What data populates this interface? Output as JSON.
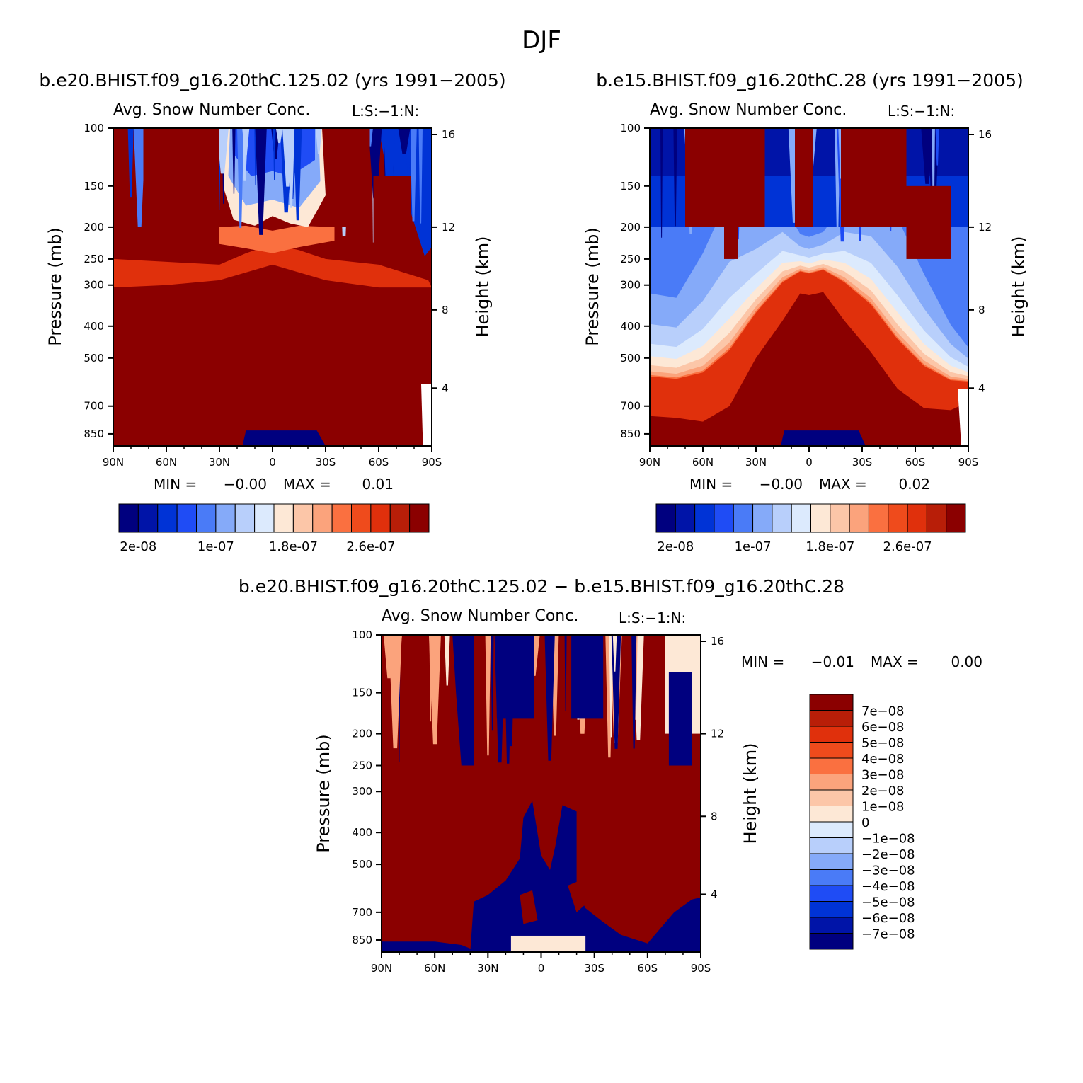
{
  "page": {
    "title": "DJF"
  },
  "chart_data": [
    {
      "type": "heatmap",
      "panel": "top-left",
      "case_title": "b.e20.BHIST.f09_g16.20thC.125.02 (yrs 1991−2005)",
      "title": "Avg. Snow Number Conc.",
      "subtitle": "L:S:−1:N:",
      "xlabel": "",
      "ylabel": "Pressure (mb)",
      "ylabel_right": "Height (km)",
      "x_ticks": [
        "90N",
        "60N",
        "30N",
        "0",
        "30S",
        "60S",
        "90S"
      ],
      "y_ticks": [
        "100",
        "150",
        "200",
        "250",
        "300",
        "400",
        "500",
        "700",
        "850"
      ],
      "y_ticks_right": [
        "16",
        "12",
        "8",
        "4"
      ],
      "ylim": [
        100,
        925
      ],
      "y_scale": "log",
      "xlim": [
        90,
        -90
      ],
      "stats": {
        "min_label": "MIN =",
        "min_value": "−0.00",
        "max_label": "MAX =",
        "max_value": "0.01"
      },
      "colorbar": {
        "orientation": "horizontal",
        "labels": [
          "2e-08",
          "1e-07",
          "1.8e-07",
          "2.6e-07"
        ]
      },
      "description_of_field": "mostly saturated dark red; blue spikes in upper levels; blue low-level patch near equator"
    },
    {
      "type": "heatmap",
      "panel": "top-right",
      "case_title": "b.e15.BHIST.f09_g16.20thC.28 (yrs 1991−2005)",
      "title": "Avg. Snow Number Conc.",
      "subtitle": "L:S:−1:N:",
      "xlabel": "",
      "ylabel": "Pressure (mb)",
      "ylabel_right": "Height (km)",
      "x_ticks": [
        "90N",
        "60N",
        "30N",
        "0",
        "30S",
        "60S",
        "90S"
      ],
      "y_ticks": [
        "100",
        "150",
        "200",
        "250",
        "300",
        "400",
        "500",
        "700",
        "850"
      ],
      "y_ticks_right": [
        "16",
        "12",
        "8",
        "4"
      ],
      "ylim": [
        100,
        925
      ],
      "y_scale": "log",
      "xlim": [
        90,
        -90
      ],
      "stats": {
        "min_label": "MIN =",
        "min_value": "−0.00",
        "max_label": "MAX =",
        "max_value": "0.02"
      },
      "colorbar": {
        "orientation": "horizontal",
        "labels": [
          "2e-08",
          "1e-07",
          "1.8e-07",
          "2.6e-07"
        ]
      }
    },
    {
      "type": "heatmap",
      "panel": "bottom",
      "case_title": "b.e20.BHIST.f09_g16.20thC.125.02 − b.e15.BHIST.f09_g16.20thC.28",
      "title": "Avg. Snow Number Conc.",
      "subtitle": "L:S:−1:N:",
      "xlabel": "",
      "ylabel": "Pressure (mb)",
      "ylabel_right": "Height (km)",
      "x_ticks": [
        "90N",
        "60N",
        "30N",
        "0",
        "30S",
        "60S",
        "90S"
      ],
      "y_ticks": [
        "100",
        "150",
        "200",
        "250",
        "300",
        "400",
        "500",
        "700",
        "850"
      ],
      "y_ticks_right": [
        "16",
        "12",
        "8",
        "4"
      ],
      "ylim": [
        100,
        925
      ],
      "y_scale": "log",
      "xlim": [
        90,
        -90
      ],
      "stats": {
        "min_label": "MIN =",
        "min_value": "−0.01",
        "max_label": "MAX =",
        "max_value": "0.00"
      },
      "colorbar": {
        "orientation": "vertical",
        "labels": [
          "7e−08",
          "6e−08",
          "5e−08",
          "4e−08",
          "3e−08",
          "2e−08",
          "1e−08",
          "0",
          "−1e−08",
          "−2e−08",
          "−3e−08",
          "−4e−08",
          "−5e−08",
          "−6e−08",
          "−7e−08"
        ]
      }
    }
  ],
  "colors": {
    "scale": [
      "#00007f",
      "#0014a8",
      "#0033d6",
      "#1f4cf5",
      "#4a7bf7",
      "#85aaf9",
      "#b8cffb",
      "#dceafd",
      "#fde8d6",
      "#fcc6a8",
      "#fba37c",
      "#fa7040",
      "#ef4b1c",
      "#e0300c",
      "#b81e08",
      "#8b0000"
    ],
    "axis": "#000000",
    "background": "#ffffff"
  }
}
